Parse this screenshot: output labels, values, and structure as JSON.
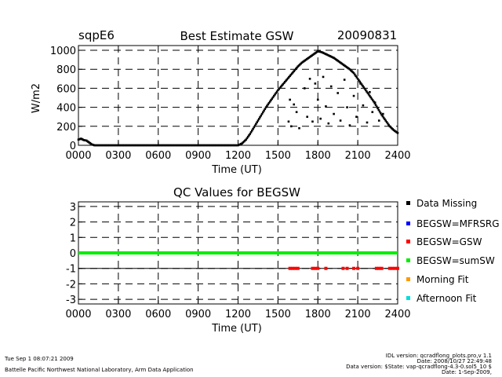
{
  "site": "sqpE6",
  "date": "20090831",
  "colors": {
    "data_missing": "#000000",
    "mfrsrg": "#0000ff",
    "gsw": "#ff0000",
    "sumsw": "#00ee00",
    "morning": "#ff9900",
    "afternoon": "#00dddd"
  },
  "chart_data": [
    {
      "type": "scatter",
      "title": "Best Estimate GSW",
      "xlabel": "Time (UT)",
      "ylabel": "W/m2",
      "xlim": [
        0,
        2400
      ],
      "ylim": [
        0,
        1050
      ],
      "x_ticks": [
        "0000",
        "0300",
        "0600",
        "0900",
        "1200",
        "1500",
        "1800",
        "2100",
        "2400"
      ],
      "y_ticks": [
        "0",
        "200",
        "400",
        "600",
        "800",
        "1000"
      ],
      "grid": true,
      "series": [
        {
          "values": [
            [
              0,
              60
            ],
            [
              20,
              70
            ],
            [
              40,
              55
            ],
            [
              60,
              50
            ],
            [
              80,
              30
            ],
            [
              100,
              10
            ],
            [
              120,
              0
            ],
            [
              1200,
              0
            ],
            [
              1230,
              20
            ],
            [
              1260,
              60
            ],
            [
              1290,
              120
            ],
            [
              1320,
              190
            ],
            [
              1350,
              260
            ],
            [
              1380,
              330
            ],
            [
              1410,
              400
            ],
            [
              1440,
              460
            ],
            [
              1470,
              520
            ],
            [
              1500,
              580
            ],
            [
              1530,
              630
            ],
            [
              1560,
              680
            ],
            [
              1590,
              730
            ],
            [
              1620,
              780
            ],
            [
              1650,
              830
            ],
            [
              1680,
              870
            ],
            [
              1710,
              900
            ],
            [
              1740,
              930
            ],
            [
              1770,
              960
            ],
            [
              1800,
              990
            ],
            [
              1830,
              980
            ],
            [
              1860,
              960
            ],
            [
              1890,
              940
            ],
            [
              1920,
              920
            ],
            [
              1950,
              890
            ],
            [
              1980,
              860
            ],
            [
              2010,
              830
            ],
            [
              2040,
              800
            ],
            [
              2070,
              760
            ],
            [
              2100,
              700
            ],
            [
              2130,
              640
            ],
            [
              2160,
              580
            ],
            [
              2190,
              520
            ],
            [
              2220,
              460
            ],
            [
              2250,
              390
            ],
            [
              2280,
              320
            ],
            [
              2310,
              260
            ],
            [
              2340,
              200
            ],
            [
              2370,
              160
            ],
            [
              2400,
              130
            ]
          ]
        },
        {
          "values": [
            [
              1580,
              250
            ],
            [
              1590,
              480
            ],
            [
              1600,
              200
            ],
            [
              1620,
              430
            ],
            [
              1640,
              350
            ],
            [
              1660,
              180
            ],
            [
              1700,
              600
            ],
            [
              1720,
              300
            ],
            [
              1740,
              700
            ],
            [
              1760,
              250
            ],
            [
              1780,
              650
            ],
            [
              1800,
              480
            ],
            [
              1820,
              280
            ],
            [
              1840,
              720
            ],
            [
              1860,
              410
            ],
            [
              1880,
              230
            ],
            [
              1900,
              620
            ],
            [
              1920,
              330
            ],
            [
              1950,
              550
            ],
            [
              1970,
              260
            ],
            [
              2000,
              690
            ],
            [
              2020,
              400
            ],
            [
              2040,
              210
            ],
            [
              2070,
              520
            ],
            [
              2090,
              300
            ],
            [
              2120,
              650
            ],
            [
              2140,
              420
            ],
            [
              2170,
              240
            ],
            [
              2190,
              560
            ],
            [
              2210,
              350
            ],
            [
              2230,
              450
            ],
            [
              2260,
              260
            ],
            [
              2290,
              330
            ]
          ]
        }
      ]
    },
    {
      "type": "scatter",
      "title": "QC Values for BEGSW",
      "xlabel": "Time (UT)",
      "xlim": [
        0,
        2400
      ],
      "ylim": [
        -3.3,
        3.3
      ],
      "x_ticks": [
        "0000",
        "0300",
        "0600",
        "0900",
        "1200",
        "1500",
        "1800",
        "2100",
        "2400"
      ],
      "y_ticks": [
        "3",
        "2",
        "1",
        "0",
        "-1",
        "-2",
        "-3"
      ],
      "grid": true,
      "legend": [
        "Data Missing",
        "BEGSW=MFRSRG",
        "BEGSW=GSW",
        "BEGSW=sumSW",
        "Morning Fit",
        "Afternoon Fit"
      ],
      "series": [
        {
          "name": "BEGSW=sumSW",
          "values": [
            [
              0,
              0
            ],
            [
              2400,
              0
            ]
          ]
        },
        {
          "name": "BEGSW=GSW",
          "values": [
            [
              1590,
              -1
            ],
            [
              1610,
              -1
            ],
            [
              1630,
              -1
            ],
            [
              1650,
              -1
            ],
            [
              1760,
              -1
            ],
            [
              1780,
              -1
            ],
            [
              1800,
              -1
            ],
            [
              1860,
              -1
            ],
            [
              1990,
              -1
            ],
            [
              2020,
              -1
            ],
            [
              2070,
              -1
            ],
            [
              2100,
              -1
            ],
            [
              2240,
              -1
            ],
            [
              2260,
              -1
            ],
            [
              2280,
              -1
            ],
            [
              2340,
              -1
            ],
            [
              2360,
              -1
            ],
            [
              2380,
              -1
            ],
            [
              2400,
              -1
            ]
          ]
        }
      ]
    }
  ],
  "footer": {
    "timestamp": "Tue Sep  1 08:07:21 2009",
    "credit": "Battelle Pacific Northwest National Laboratory, Arm Data Application",
    "idl_version": "IDL version: qcradflong_plots.pro,v 1.1",
    "idl_date": "Date: 2008/10/27 22:49:48",
    "data_version": "Data version: $State: vap-qcradflong-4.3-0.sol5_10 $",
    "data_date": "Date: 1-Sep-2009,"
  }
}
